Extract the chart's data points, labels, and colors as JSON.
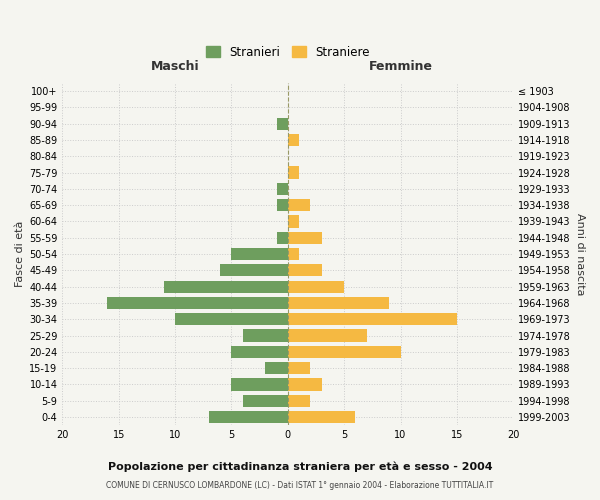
{
  "age_groups": [
    "0-4",
    "5-9",
    "10-14",
    "15-19",
    "20-24",
    "25-29",
    "30-34",
    "35-39",
    "40-44",
    "45-49",
    "50-54",
    "55-59",
    "60-64",
    "65-69",
    "70-74",
    "75-79",
    "80-84",
    "85-89",
    "90-94",
    "95-99",
    "100+"
  ],
  "birth_years": [
    "1999-2003",
    "1994-1998",
    "1989-1993",
    "1984-1988",
    "1979-1983",
    "1974-1978",
    "1969-1973",
    "1964-1968",
    "1959-1963",
    "1954-1958",
    "1949-1953",
    "1944-1948",
    "1939-1943",
    "1934-1938",
    "1929-1933",
    "1924-1928",
    "1919-1923",
    "1914-1918",
    "1909-1913",
    "1904-1908",
    "≤ 1903"
  ],
  "males": [
    7,
    4,
    5,
    2,
    5,
    4,
    10,
    16,
    11,
    6,
    5,
    1,
    0,
    1,
    1,
    0,
    0,
    0,
    1,
    0,
    0
  ],
  "females": [
    6,
    2,
    3,
    2,
    10,
    7,
    15,
    9,
    5,
    3,
    1,
    3,
    1,
    2,
    0,
    1,
    0,
    1,
    0,
    0,
    0
  ],
  "male_color": "#6e9e5e",
  "female_color": "#f5b942",
  "background_color": "#f5f5f0",
  "grid_color": "#cccccc",
  "center_line_color": "#999966",
  "title": "Popolazione per cittadinanza straniera per età e sesso - 2004",
  "subtitle": "COMUNE DI CERNUSCO LOMBARDONE (LC) - Dati ISTAT 1° gennaio 2004 - Elaborazione TUTTITALIA.IT",
  "ylabel_left": "Fasce di età",
  "ylabel_right": "Anni di nascita",
  "xlabel_left": "Maschi",
  "xlabel_right": "Femmine",
  "legend_males": "Stranieri",
  "legend_females": "Straniere",
  "xlim": 20
}
